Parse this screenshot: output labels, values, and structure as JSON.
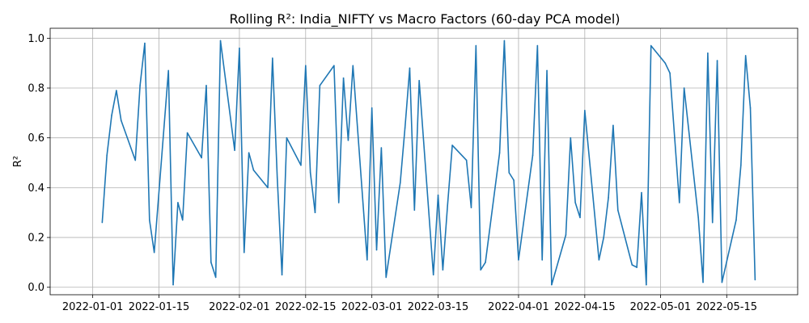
{
  "chart_data": {
    "type": "line",
    "title": "Rolling R²: India_NIFTY vs Macro Factors (60-day PCA model)",
    "xlabel": "",
    "ylabel": "R²",
    "grid": true,
    "legend": "none",
    "xlim": [
      "2021-12-23",
      "2022-05-30"
    ],
    "ylim": [
      -0.03,
      1.04
    ],
    "x_ticks": [
      "2022-01-01",
      "2022-01-15",
      "2022-02-01",
      "2022-02-15",
      "2022-03-01",
      "2022-03-15",
      "2022-04-01",
      "2022-04-15",
      "2022-05-01",
      "2022-05-15"
    ],
    "y_ticks": [
      0.0,
      0.2,
      0.4,
      0.6,
      0.8,
      1.0
    ],
    "series": [
      {
        "color": "#1f77b4",
        "points": [
          [
            "2022-01-03",
            0.26
          ],
          [
            "2022-01-04",
            0.53
          ],
          [
            "2022-01-05",
            0.69
          ],
          [
            "2022-01-06",
            0.79
          ],
          [
            "2022-01-07",
            0.67
          ],
          [
            "2022-01-10",
            0.51
          ],
          [
            "2022-01-11",
            0.81
          ],
          [
            "2022-01-12",
            0.98
          ],
          [
            "2022-01-13",
            0.27
          ],
          [
            "2022-01-14",
            0.14
          ],
          [
            "2022-01-17",
            0.87
          ],
          [
            "2022-01-18",
            0.01
          ],
          [
            "2022-01-19",
            0.34
          ],
          [
            "2022-01-20",
            0.27
          ],
          [
            "2022-01-21",
            0.62
          ],
          [
            "2022-01-24",
            0.52
          ],
          [
            "2022-01-25",
            0.81
          ],
          [
            "2022-01-26",
            0.1
          ],
          [
            "2022-01-27",
            0.04
          ],
          [
            "2022-01-28",
            0.99
          ],
          [
            "2022-01-31",
            0.55
          ],
          [
            "2022-02-01",
            0.96
          ],
          [
            "2022-02-02",
            0.14
          ],
          [
            "2022-02-03",
            0.54
          ],
          [
            "2022-02-04",
            0.47
          ],
          [
            "2022-02-07",
            0.4
          ],
          [
            "2022-02-08",
            0.92
          ],
          [
            "2022-02-09",
            0.44
          ],
          [
            "2022-02-10",
            0.05
          ],
          [
            "2022-02-11",
            0.6
          ],
          [
            "2022-02-14",
            0.49
          ],
          [
            "2022-02-15",
            0.89
          ],
          [
            "2022-02-16",
            0.46
          ],
          [
            "2022-02-17",
            0.3
          ],
          [
            "2022-02-18",
            0.81
          ],
          [
            "2022-02-21",
            0.89
          ],
          [
            "2022-02-22",
            0.34
          ],
          [
            "2022-02-23",
            0.84
          ],
          [
            "2022-02-24",
            0.59
          ],
          [
            "2022-02-25",
            0.89
          ],
          [
            "2022-02-28",
            0.11
          ],
          [
            "2022-03-01",
            0.72
          ],
          [
            "2022-03-02",
            0.15
          ],
          [
            "2022-03-03",
            0.56
          ],
          [
            "2022-03-04",
            0.04
          ],
          [
            "2022-03-07",
            0.42
          ],
          [
            "2022-03-08",
            0.64
          ],
          [
            "2022-03-09",
            0.88
          ],
          [
            "2022-03-10",
            0.31
          ],
          [
            "2022-03-11",
            0.83
          ],
          [
            "2022-03-14",
            0.05
          ],
          [
            "2022-03-15",
            0.37
          ],
          [
            "2022-03-16",
            0.07
          ],
          [
            "2022-03-17",
            0.33
          ],
          [
            "2022-03-18",
            0.57
          ],
          [
            "2022-03-21",
            0.51
          ],
          [
            "2022-03-22",
            0.32
          ],
          [
            "2022-03-23",
            0.97
          ],
          [
            "2022-03-24",
            0.07
          ],
          [
            "2022-03-25",
            0.1
          ],
          [
            "2022-03-28",
            0.54
          ],
          [
            "2022-03-29",
            0.99
          ],
          [
            "2022-03-30",
            0.46
          ],
          [
            "2022-03-31",
            0.43
          ],
          [
            "2022-04-01",
            0.11
          ],
          [
            "2022-04-04",
            0.53
          ],
          [
            "2022-04-05",
            0.97
          ],
          [
            "2022-04-06",
            0.11
          ],
          [
            "2022-04-07",
            0.87
          ],
          [
            "2022-04-08",
            0.01
          ],
          [
            "2022-04-11",
            0.21
          ],
          [
            "2022-04-12",
            0.6
          ],
          [
            "2022-04-13",
            0.34
          ],
          [
            "2022-04-14",
            0.28
          ],
          [
            "2022-04-15",
            0.71
          ],
          [
            "2022-04-18",
            0.11
          ],
          [
            "2022-04-19",
            0.2
          ],
          [
            "2022-04-20",
            0.36
          ],
          [
            "2022-04-21",
            0.65
          ],
          [
            "2022-04-22",
            0.31
          ],
          [
            "2022-04-25",
            0.09
          ],
          [
            "2022-04-26",
            0.08
          ],
          [
            "2022-04-27",
            0.38
          ],
          [
            "2022-04-28",
            0.01
          ],
          [
            "2022-04-29",
            0.97
          ],
          [
            "2022-05-02",
            0.9
          ],
          [
            "2022-05-03",
            0.86
          ],
          [
            "2022-05-04",
            0.6
          ],
          [
            "2022-05-05",
            0.34
          ],
          [
            "2022-05-06",
            0.8
          ],
          [
            "2022-05-09",
            0.28
          ],
          [
            "2022-05-10",
            0.02
          ],
          [
            "2022-05-11",
            0.94
          ],
          [
            "2022-05-12",
            0.26
          ],
          [
            "2022-05-13",
            0.91
          ],
          [
            "2022-05-14",
            0.02
          ],
          [
            "2022-05-17",
            0.27
          ],
          [
            "2022-05-18",
            0.49
          ],
          [
            "2022-05-19",
            0.93
          ],
          [
            "2022-05-20",
            0.72
          ],
          [
            "2022-05-21",
            0.03
          ]
        ]
      }
    ]
  }
}
